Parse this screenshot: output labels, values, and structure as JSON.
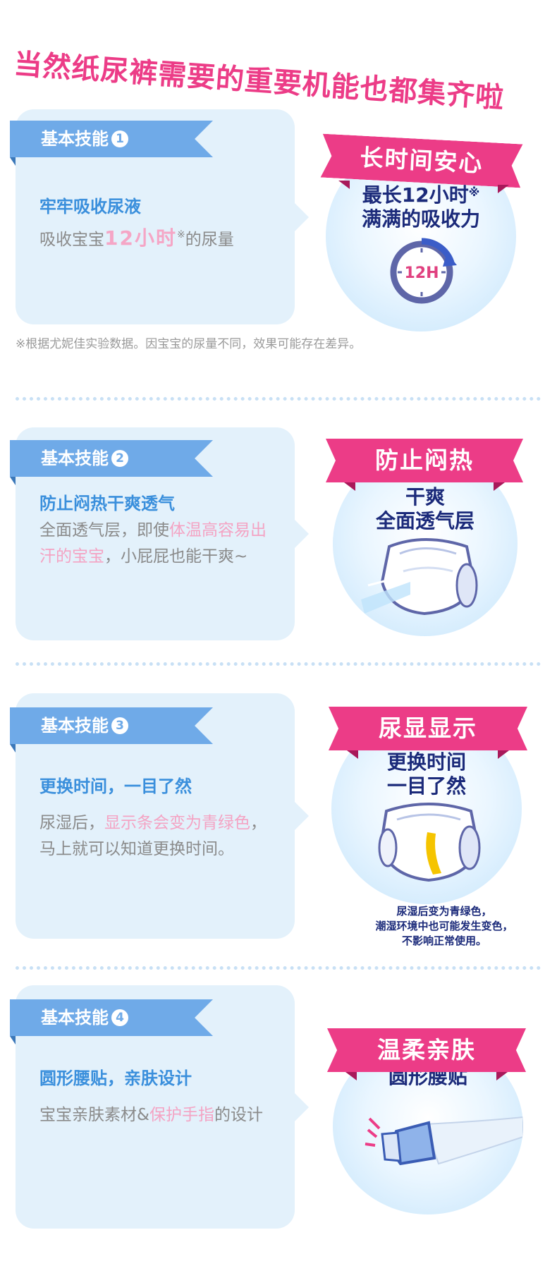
{
  "title": "当然纸尿裤需要的重要机能也都集齐啦",
  "sections": [
    {
      "badge_label": "基本技能",
      "badge_num": "1",
      "heading": "牢牢吸收尿液",
      "body_a": "吸收宝宝",
      "body_highlight": "12小时",
      "body_mark": "※",
      "body_b": "的尿量",
      "banner": "长时间安心",
      "circle_line1": "最长12小时",
      "circle_mark": "※",
      "circle_line2": "满满的吸收力",
      "clock_label": "12H"
    },
    {
      "badge_label": "基本技能",
      "badge_num": "2",
      "heading": "防止闷热干爽透气",
      "body_a": "全面透气层，即使",
      "body_highlight": "体温高容易出汗的宝宝",
      "body_b": "，小屁屁也能干爽~",
      "banner": "防止闷热",
      "circle_line1": "干爽",
      "circle_line2": "全面透气层"
    },
    {
      "badge_label": "基本技能",
      "badge_num": "3",
      "heading": "更换时间，一目了然",
      "body_a": "尿湿后，",
      "body_highlight": "显示条会变为青绿色",
      "body_b": "，马上就可以知道更换时间。",
      "banner": "尿显显示",
      "circle_line1": "更换时间",
      "circle_line2": "一目了然",
      "small_note": [
        "尿湿后变为青绿色，",
        "潮湿环境中也可能发生变色，",
        "不影响正常使用。"
      ]
    },
    {
      "badge_label": "基本技能",
      "badge_num": "4",
      "heading": "圆形腰贴，亲肤设计",
      "body_a": "宝宝亲肤素材&",
      "body_highlight": "保护手指",
      "body_b": "的设计",
      "banner": "温柔亲肤",
      "circle_line1": "圆形腰贴"
    }
  ],
  "footnote": "※根据尤妮佳实验数据。因宝宝的尿量不同，效果可能存在差异。",
  "colors": {
    "pink": "#ec3c87",
    "blue_ribbon": "#6faae8",
    "card_bg": "#e3f1fb",
    "navy_text": "#1b2a7a",
    "indicator_yellow": "#f5c400"
  }
}
